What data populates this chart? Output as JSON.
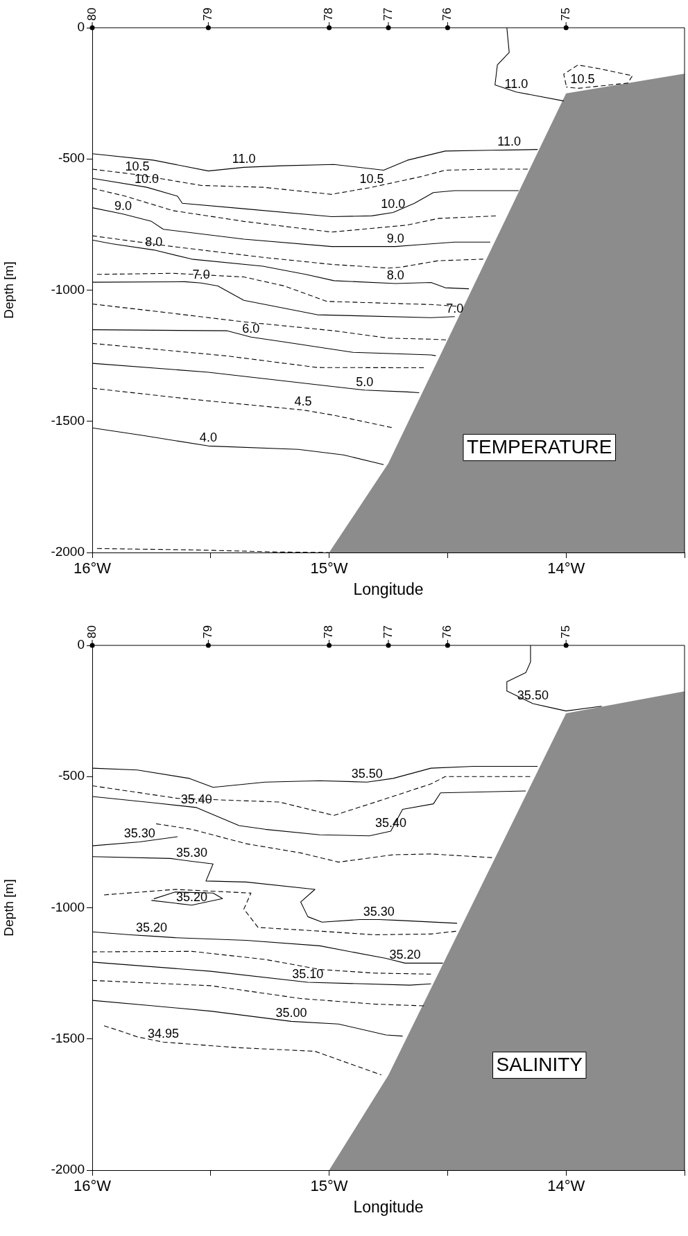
{
  "chart_data": [
    {
      "type": "line",
      "xlabel": "Longitude",
      "ylabel": "Depth [m]",
      "xlim": [
        -16,
        -13.5
      ],
      "ylim": [
        -2000,
        0
      ],
      "grid": false,
      "legend": false,
      "marker": "none",
      "xticks": [
        {
          "value": -16,
          "label": "16°W"
        },
        {
          "value": -15.5,
          "label": null
        },
        {
          "value": -15,
          "label": "15°W"
        },
        {
          "value": -14.5,
          "label": null
        },
        {
          "value": -14,
          "label": "14°W"
        },
        {
          "value": -13.5,
          "label": null
        }
      ],
      "yticks": [
        0,
        -500,
        -1000,
        -1500,
        -2000
      ],
      "annotations": [
        "TEMPERATURE",
        {
          "text": "80",
          "x": -16,
          "y": 0
        },
        {
          "text": "79",
          "x": -15.51,
          "y": 0
        },
        {
          "text": "78",
          "x": -15,
          "y": 0
        },
        {
          "text": "77",
          "x": -14.75,
          "y": 0
        },
        {
          "text": "76",
          "x": -14.5,
          "y": 0
        },
        {
          "text": "75",
          "x": -14,
          "y": 0
        },
        {
          "text": "11.0",
          "x": -14.21,
          "y": -245
        },
        {
          "text": "10.5",
          "x": -13.93,
          "y": -228
        },
        {
          "text": "11.0",
          "x": -15.36,
          "y": -532
        },
        {
          "text": "11.0",
          "x": -14.24,
          "y": -466
        },
        {
          "text": "10.5",
          "x": -15.81,
          "y": -560
        },
        {
          "text": "10.5",
          "x": -14.82,
          "y": -608
        },
        {
          "text": "10.0",
          "x": -15.77,
          "y": -608
        },
        {
          "text": "10.0",
          "x": -14.73,
          "y": -704
        },
        {
          "text": "9.0",
          "x": -15.87,
          "y": -710
        },
        {
          "text": "9.0",
          "x": -14.72,
          "y": -834
        },
        {
          "text": "8.0",
          "x": -15.74,
          "y": -847
        },
        {
          "text": "8.0",
          "x": -14.72,
          "y": -975
        },
        {
          "text": "7.0",
          "x": -15.54,
          "y": -973
        },
        {
          "text": "7.0",
          "x": -14.47,
          "y": -1101
        },
        {
          "text": "6.0",
          "x": -15.33,
          "y": -1179
        },
        {
          "text": "5.0",
          "x": -14.85,
          "y": -1381
        },
        {
          "text": "4.5",
          "x": -15.11,
          "y": -1457
        },
        {
          "text": "4.0",
          "x": -15.51,
          "y": -1594
        }
      ],
      "series": [
        {
          "type": "area",
          "color": "#8c8c8c",
          "x": [
            -15,
            -14.75,
            -14,
            -13.5,
            -13.5
          ],
          "values": [
            -2000,
            -1660,
            -250,
            -175,
            -2000
          ]
        },
        {
          "color": "#000000",
          "line_style": "solid",
          "x": [
            -14.25,
            -14.24,
            -14.29,
            -14.3,
            -14.21,
            -14.01
          ],
          "values": [
            0,
            -94,
            -142,
            -218,
            -245,
            -279
          ]
        },
        {
          "color": "#000000",
          "line_style": "dashed",
          "x": [
            -14.0,
            -14.01,
            -13.95,
            -13.86,
            -13.72,
            -13.74,
            -13.95,
            -14.0
          ],
          "values": [
            -218,
            -177,
            -142,
            -156,
            -183,
            -211,
            -231,
            -226
          ]
        },
        {
          "color": "#000000",
          "line_style": "solid",
          "x": [
            -16,
            -15.74,
            -15.51,
            -15.36,
            -15.2,
            -14.98,
            -14.77,
            -14.67,
            -14.51,
            -14.32,
            -14.24,
            -14.12
          ],
          "values": [
            -480,
            -505,
            -546,
            -532,
            -526,
            -521,
            -543,
            -505,
            -470,
            -467,
            -466,
            -464
          ]
        },
        {
          "color": "#000000",
          "line_style": "dashed",
          "x": [
            -16,
            -15.81,
            -15.54,
            -15.4,
            -15.28,
            -14.99,
            -14.82,
            -14.61,
            -14.51,
            -14.32,
            -14.15
          ],
          "values": [
            -539,
            -560,
            -601,
            -605,
            -608,
            -635,
            -608,
            -567,
            -543,
            -539,
            -539
          ]
        },
        {
          "color": "#000000",
          "line_style": "solid",
          "x": [
            -16,
            -15.77,
            -15.64,
            -15.62,
            -15.36,
            -14.99,
            -14.82,
            -14.73,
            -14.64,
            -14.56,
            -14.47,
            -14.2
          ],
          "values": [
            -574,
            -608,
            -642,
            -669,
            -690,
            -720,
            -717,
            -704,
            -669,
            -628,
            -621,
            -621
          ]
        },
        {
          "color": "#000000",
          "line_style": "dashed",
          "x": [
            -16,
            -15.86,
            -15.66,
            -15.36,
            -14.99,
            -14.67,
            -14.54,
            -14.29
          ],
          "values": [
            -612,
            -642,
            -697,
            -738,
            -779,
            -752,
            -727,
            -717
          ]
        },
        {
          "color": "#000000",
          "line_style": "solid",
          "x": [
            -16,
            -15.87,
            -15.75,
            -15.7,
            -15.36,
            -14.99,
            -14.72,
            -14.62,
            -14.47,
            -14.32
          ],
          "values": [
            -686,
            -710,
            -738,
            -768,
            -806,
            -834,
            -834,
            -827,
            -817,
            -817
          ]
        },
        {
          "color": "#000000",
          "line_style": "dashed",
          "x": [
            -16,
            -15.66,
            -15.28,
            -14.99,
            -14.75,
            -14.7,
            -14.54,
            -14.35
          ],
          "values": [
            -793,
            -834,
            -875,
            -902,
            -916,
            -913,
            -888,
            -882
          ]
        },
        {
          "color": "#000000",
          "line_style": "solid",
          "x": [
            -16,
            -15.92,
            -15.74,
            -15.58,
            -15.28,
            -15.1,
            -14.98,
            -14.72,
            -14.57,
            -14.51,
            -14.41
          ],
          "values": [
            -809,
            -823,
            -847,
            -882,
            -909,
            -940,
            -964,
            -975,
            -971,
            -991,
            -995
          ]
        },
        {
          "color": "#000000",
          "line_style": "dashed",
          "x": [
            -15.98,
            -15.66,
            -15.36,
            -15.19,
            -15.01,
            -14.57,
            -14.45
          ],
          "values": [
            -940,
            -936,
            -950,
            -984,
            -1043,
            -1055,
            -1062
          ]
        },
        {
          "color": "#000000",
          "line_style": "solid",
          "x": [
            -16,
            -15.61,
            -15.54,
            -15.47,
            -15.36,
            -15.05,
            -14.57,
            -14.47
          ],
          "values": [
            -970,
            -968,
            -973,
            -984,
            -1039,
            -1094,
            -1105,
            -1101
          ]
        },
        {
          "color": "#000000",
          "line_style": "dashed",
          "x": [
            -16,
            -15.74,
            -15.36,
            -14.98,
            -14.75,
            -14.57,
            -14.5
          ],
          "values": [
            -1053,
            -1080,
            -1121,
            -1155,
            -1183,
            -1187,
            -1190
          ]
        },
        {
          "color": "#000000",
          "line_style": "solid",
          "x": [
            -16,
            -15.43,
            -15.33,
            -15.2,
            -14.9,
            -14.57,
            -14.55
          ],
          "values": [
            -1151,
            -1155,
            -1179,
            -1196,
            -1237,
            -1247,
            -1250
          ]
        },
        {
          "color": "#000000",
          "line_style": "dashed",
          "x": [
            -16,
            -15.43,
            -15.05,
            -14.6
          ],
          "values": [
            -1203,
            -1251,
            -1295,
            -1296
          ]
        },
        {
          "color": "#000000",
          "line_style": "solid",
          "x": [
            -16,
            -15.51,
            -14.98,
            -14.85,
            -14.67,
            -14.62
          ],
          "values": [
            -1279,
            -1313,
            -1368,
            -1381,
            -1388,
            -1391
          ]
        },
        {
          "color": "#000000",
          "line_style": "dashed",
          "x": [
            -16,
            -15.58,
            -15.11,
            -14.98,
            -14.73
          ],
          "values": [
            -1374,
            -1416,
            -1457,
            -1477,
            -1525
          ]
        },
        {
          "color": "#000000",
          "line_style": "solid",
          "x": [
            -16,
            -15.78,
            -15.51,
            -15.13,
            -14.94,
            -14.77
          ],
          "values": [
            -1525,
            -1555,
            -1594,
            -1607,
            -1628,
            -1665
          ]
        },
        {
          "color": "#000000",
          "line_style": "dashed",
          "x": [
            -15.98,
            -15.58,
            -15.22,
            -15.0
          ],
          "values": [
            -1985,
            -1990,
            -1998,
            -2000
          ]
        }
      ]
    },
    {
      "type": "line",
      "xlabel": "Longitude",
      "ylabel": "Depth [m]",
      "xlim": [
        -16,
        -13.5
      ],
      "ylim": [
        -2000,
        0
      ],
      "grid": false,
      "legend": false,
      "marker": "none",
      "xticks": [
        {
          "value": -16,
          "label": "16°W"
        },
        {
          "value": -15.5,
          "label": null
        },
        {
          "value": -15,
          "label": "15°W"
        },
        {
          "value": -14.5,
          "label": null
        },
        {
          "value": -14,
          "label": "14°W"
        },
        {
          "value": -13.5,
          "label": null
        }
      ],
      "yticks": [
        0,
        -500,
        -1000,
        -1500,
        -2000
      ],
      "annotations": [
        "SALINITY",
        {
          "text": "80",
          "x": -16,
          "y": 0
        },
        {
          "text": "79",
          "x": -15.51,
          "y": 0
        },
        {
          "text": "78",
          "x": -15,
          "y": 0
        },
        {
          "text": "77",
          "x": -14.75,
          "y": 0
        },
        {
          "text": "76",
          "x": -14.5,
          "y": 0
        },
        {
          "text": "75",
          "x": -14,
          "y": 0
        },
        {
          "text": "35.50",
          "x": -14.14,
          "y": -222
        },
        {
          "text": "35.50",
          "x": -14.84,
          "y": -521
        },
        {
          "text": "35.40",
          "x": -15.56,
          "y": -618
        },
        {
          "text": "35.40",
          "x": -14.74,
          "y": -708
        },
        {
          "text": "35.30",
          "x": -15.8,
          "y": -749
        },
        {
          "text": "35.30",
          "x": -15.58,
          "y": -823
        },
        {
          "text": "35.30",
          "x": -14.79,
          "y": -1045
        },
        {
          "text": "35.20",
          "x": -15.58,
          "y": -990
        },
        {
          "text": "35.20",
          "x": -15.75,
          "y": -1108
        },
        {
          "text": "35.20",
          "x": -14.68,
          "y": -1211
        },
        {
          "text": "35.10",
          "x": -15.09,
          "y": -1284
        },
        {
          "text": "35.00",
          "x": -15.16,
          "y": -1433
        },
        {
          "text": "34.95",
          "x": -15.7,
          "y": -1512
        }
      ],
      "series": [
        {
          "type": "area",
          "color": "#8c8c8c",
          "x": [
            -15,
            -14.75,
            -14,
            -13.5,
            -13.5
          ],
          "values": [
            -2000,
            -1638,
            -259,
            -175,
            -2000
          ]
        },
        {
          "color": "#000000",
          "line_style": "solid",
          "x": [
            -14.15,
            -14.15,
            -14.17,
            -14.25,
            -14.25,
            -14.14,
            -14.05,
            -14.0,
            -13.85
          ],
          "values": [
            0,
            -63,
            -104,
            -139,
            -174,
            -222,
            -240,
            -250,
            -232
          ]
        },
        {
          "color": "#000000",
          "line_style": "solid",
          "x": [
            -16.0,
            -15.81,
            -15.59,
            -15.49,
            -15.27,
            -15.04,
            -14.84,
            -14.73,
            -14.57,
            -14.39,
            -14.12
          ],
          "values": [
            -468,
            -475,
            -507,
            -541,
            -521,
            -516,
            -521,
            -507,
            -468,
            -461,
            -461
          ]
        },
        {
          "color": "#000000",
          "line_style": "dashed",
          "x": [
            -16.0,
            -15.64,
            -15.21,
            -14.98,
            -14.78,
            -14.57,
            -14.51,
            -14.14
          ],
          "values": [
            -535,
            -583,
            -597,
            -648,
            -590,
            -528,
            -500,
            -500
          ]
        },
        {
          "color": "#000000",
          "line_style": "solid",
          "x": [
            -16.0,
            -15.73,
            -15.56,
            -15.38,
            -15.27,
            -15.04,
            -14.83,
            -14.74,
            -14.69,
            -14.56,
            -14.53,
            -14.17
          ],
          "values": [
            -576,
            -601,
            -618,
            -687,
            -701,
            -722,
            -726,
            -708,
            -625,
            -604,
            -562,
            -555
          ]
        },
        {
          "color": "#000000",
          "line_style": "dashed",
          "x": [
            -15.73,
            -15.58,
            -15.35,
            -15.12,
            -14.96,
            -14.73,
            -14.57,
            -14.31
          ],
          "values": [
            -680,
            -701,
            -756,
            -791,
            -826,
            -798,
            -795,
            -809
          ]
        },
        {
          "color": "#000000",
          "line_style": "solid",
          "x": [
            -16.0,
            -15.8,
            -15.64
          ],
          "values": [
            -764,
            -749,
            -729
          ]
        },
        {
          "color": "#000000",
          "line_style": "solid",
          "x": [
            -16.0,
            -15.67,
            -15.58,
            -15.49,
            -15.52,
            -15.35,
            -15.06,
            -15.12,
            -15.09,
            -15.03,
            -14.87,
            -14.79,
            -14.71,
            -14.46
          ],
          "values": [
            -805,
            -812,
            -823,
            -833,
            -898,
            -902,
            -930,
            -978,
            -1034,
            -1055,
            -1045,
            -1045,
            -1048,
            -1059
          ]
        },
        {
          "color": "#000000",
          "line_style": "dashed",
          "x": [
            -15.95,
            -15.65,
            -15.33,
            -15.36,
            -15.3,
            -15.04,
            -14.81,
            -14.57,
            -14.46
          ],
          "values": [
            -951,
            -930,
            -944,
            -1005,
            -1075,
            -1089,
            -1103,
            -1100,
            -1089
          ]
        },
        {
          "color": "#000000",
          "line_style": "solid",
          "x": [
            -15.75,
            -15.58,
            -15.45,
            -15.49,
            -15.65,
            -15.74
          ],
          "values": [
            -972,
            -990,
            -965,
            -944,
            -940,
            -966
          ]
        },
        {
          "color": "#000000",
          "line_style": "solid",
          "x": [
            -16.0,
            -15.84,
            -15.75,
            -15.65,
            -15.35,
            -15.04,
            -14.76,
            -14.68,
            -14.59,
            -14.52
          ],
          "values": [
            -1092,
            -1103,
            -1108,
            -1114,
            -1124,
            -1145,
            -1193,
            -1211,
            -1211,
            -1211
          ]
        },
        {
          "color": "#000000",
          "line_style": "dashed",
          "x": [
            -16.0,
            -15.58,
            -15.27,
            -15.04,
            -14.81,
            -14.57
          ],
          "values": [
            -1168,
            -1166,
            -1197,
            -1235,
            -1249,
            -1253
          ]
        },
        {
          "color": "#000000",
          "line_style": "solid",
          "x": [
            -16.0,
            -15.5,
            -15.09,
            -14.66,
            -14.57
          ],
          "values": [
            -1207,
            -1242,
            -1284,
            -1295,
            -1290
          ]
        },
        {
          "color": "#000000",
          "line_style": "dashed",
          "x": [
            -16.0,
            -15.5,
            -15.12,
            -14.81,
            -14.6
          ],
          "values": [
            -1277,
            -1297,
            -1346,
            -1367,
            -1374
          ]
        },
        {
          "color": "#000000",
          "line_style": "solid",
          "x": [
            -16.0,
            -15.75,
            -15.5,
            -15.16,
            -14.96,
            -14.76,
            -14.69
          ],
          "values": [
            -1353,
            -1373,
            -1394,
            -1433,
            -1443,
            -1485,
            -1489
          ]
        },
        {
          "color": "#000000",
          "line_style": "dashed",
          "x": [
            -15.95,
            -15.88,
            -15.81,
            -15.7,
            -15.39,
            -15.06,
            -14.78
          ],
          "values": [
            -1450,
            -1470,
            -1492,
            -1512,
            -1533,
            -1547,
            -1637
          ]
        }
      ]
    }
  ]
}
